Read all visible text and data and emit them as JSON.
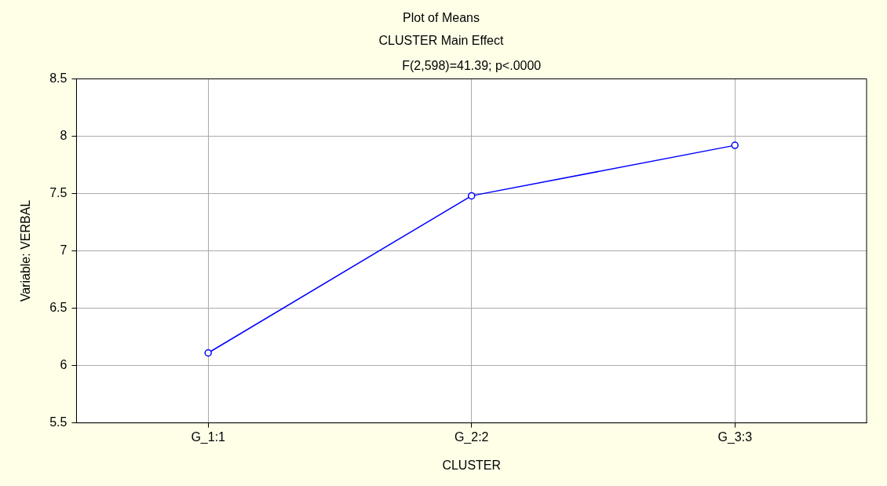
{
  "chart_data": {
    "type": "line",
    "title": "Plot of Means",
    "subtitle": "CLUSTER Main Effect",
    "annotations": [
      "F(2,598)=41.39; p<.0000"
    ],
    "xlabel": "CLUSTER",
    "ylabel": "Variable: VERBAL",
    "categories": [
      "G_1:1",
      "G_2:2",
      "G_3:3"
    ],
    "series": [
      {
        "color": "#0000ff",
        "values": [
          6.11,
          7.48,
          7.92
        ]
      }
    ],
    "ylim": [
      5.5,
      8.5
    ],
    "yticks": [
      5.5,
      6,
      6.5,
      7,
      7.5,
      8,
      8.5
    ],
    "grid": true,
    "legend": false,
    "marker": "circle",
    "line_style": "solid"
  }
}
